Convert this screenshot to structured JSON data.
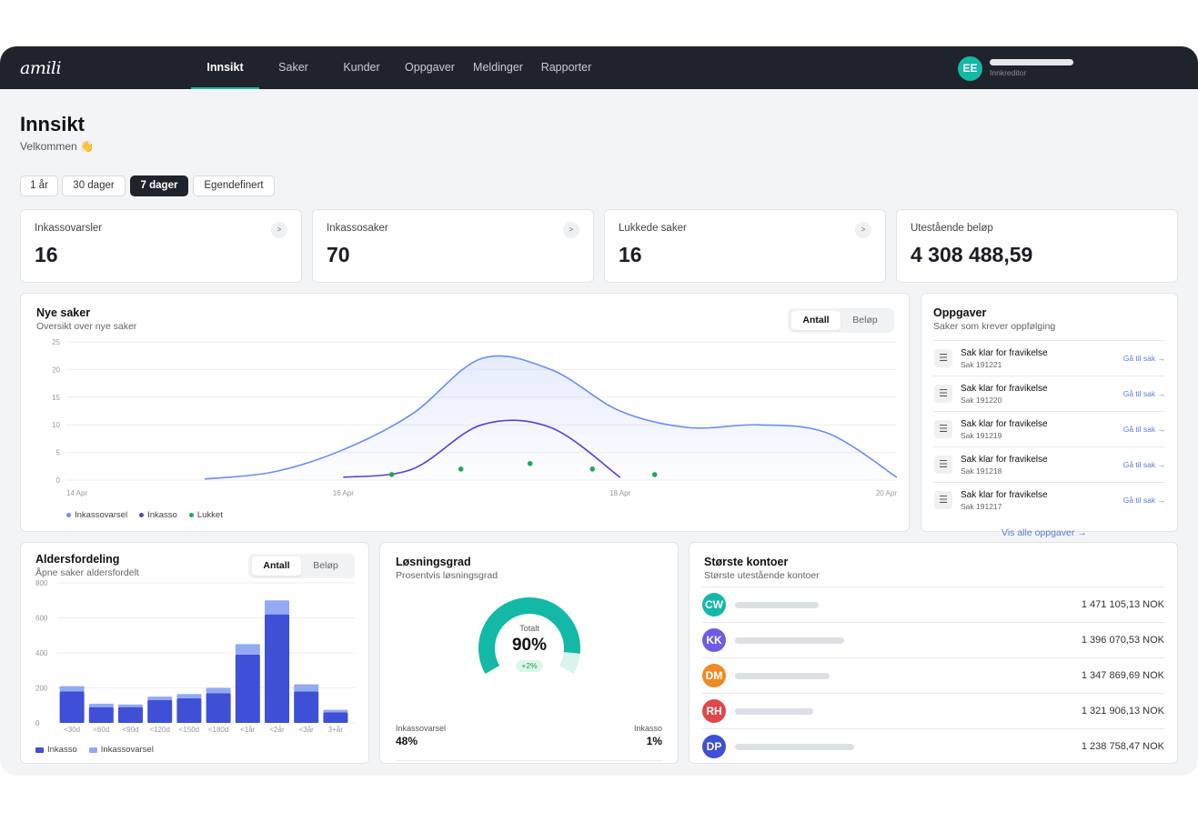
{
  "app": {
    "logo": "amili"
  },
  "nav": {
    "items": [
      "Innsikt",
      "Saker",
      "Kunder",
      "Oppgaver",
      "Meldinger",
      "Rapporter"
    ],
    "active": "Innsikt"
  },
  "user": {
    "initials": "EE",
    "role": "Innkreditor"
  },
  "page": {
    "title": "Innsikt",
    "subtitle": "Velkommen 👋"
  },
  "ranges": {
    "options": [
      "1 år",
      "30 dager",
      "7 dager",
      "Egendefinert"
    ],
    "active": "7 dager"
  },
  "kpis": [
    {
      "label": "Inkassovarsler",
      "value": "16",
      "arrow": ">"
    },
    {
      "label": "Inkassosaker",
      "value": "70",
      "arrow": ">"
    },
    {
      "label": "Lukkede saker",
      "value": "16",
      "arrow": ">"
    },
    {
      "label": "Utestående beløp",
      "value": "4 308 488,59"
    }
  ],
  "new_cases": {
    "title": "Nye saker",
    "subtitle": "Oversikt over nye saker",
    "toggle": [
      "Antall",
      "Beløp"
    ],
    "toggle_active": "Antall",
    "legend": [
      "Inkassovarsel",
      "Inkasso",
      "Lukket"
    ]
  },
  "tasks": {
    "title": "Oppgaver",
    "subtitle": "Saker som krever oppfølging",
    "items": [
      {
        "title": "Sak klar for fravikelse",
        "id": "Sak 191221",
        "link": "Gå til sak →"
      },
      {
        "title": "Sak klar for fravikelse",
        "id": "Sak 191220",
        "link": "Gå til sak →"
      },
      {
        "title": "Sak klar for fravikelse",
        "id": "Sak 191219",
        "link": "Gå til sak →"
      },
      {
        "title": "Sak klar for fravikelse",
        "id": "Sak 191218",
        "link": "Gå til sak →"
      },
      {
        "title": "Sak klar for fravikelse",
        "id": "Sak 191217",
        "link": "Gå til sak →"
      }
    ],
    "view_all": "Vis alle oppgaver →"
  },
  "age_dist": {
    "title": "Aldersfordeling",
    "subtitle": "Åpne saker aldersfordelt",
    "toggle": [
      "Antall",
      "Beløp"
    ],
    "toggle_active": "Antall",
    "legend": [
      "Inkasso",
      "Inkassovarsel"
    ]
  },
  "resolution": {
    "title": "Løsningsgrad",
    "subtitle": "Prosentvis løsningsgrad",
    "center_label": "Totalt",
    "center_value": "90%",
    "delta": "+2%",
    "left_label": "Inkassovarsel",
    "left_value": "48%",
    "right_label": "Inkasso",
    "right_value": "1%",
    "percent": 90
  },
  "accounts": {
    "title": "Største kontoer",
    "subtitle": "Største utestående kontoer",
    "items": [
      {
        "initials": "CW",
        "color": "#14b8a6",
        "amount": "1 471 105,13 NOK"
      },
      {
        "initials": "KK",
        "color": "#6d5be6",
        "amount": "1 396 070,53 NOK"
      },
      {
        "initials": "DM",
        "color": "#f08a24",
        "amount": "1 347 869,69 NOK"
      },
      {
        "initials": "RH",
        "color": "#e04848",
        "amount": "1 321 906,13 NOK"
      },
      {
        "initials": "DP",
        "color": "#3f4fd6",
        "amount": "1 238 758,47 NOK"
      }
    ]
  },
  "chart_data": [
    {
      "type": "line",
      "title": "Nye saker",
      "x_ticks": [
        "14 Apr",
        "16 Apr",
        "18 Apr",
        "20 Apr"
      ],
      "ylim": [
        0,
        25
      ],
      "y_ticks": [
        0,
        5,
        10,
        15,
        20,
        25
      ],
      "grid": true,
      "legend_placement": "bottom-left",
      "x": [
        14,
        14.5,
        15,
        15.5,
        16,
        16.5,
        17,
        17.5,
        18,
        18.5,
        19,
        19.5,
        20
      ],
      "series": [
        {
          "name": "Inkassovarsel",
          "color": "#6b8ef0",
          "values": [
            null,
            null,
            0.2,
            1.5,
            5.5,
            12,
            22,
            20,
            12.5,
            9.5,
            10,
            8.5,
            0.5
          ]
        },
        {
          "name": "Inkasso",
          "color": "#5b3fd6",
          "values": [
            null,
            null,
            null,
            null,
            0.5,
            2,
            10,
            9.5,
            0.5,
            null,
            null,
            null,
            null
          ]
        }
      ],
      "points": {
        "name": "Lukket",
        "color": "#1faa59",
        "x": [
          16.35,
          16.85,
          17.35,
          17.8,
          18.25
        ],
        "y": [
          1,
          2,
          3,
          2,
          1
        ]
      }
    },
    {
      "type": "bar",
      "title": "Aldersfordeling",
      "categories": [
        "<30d",
        "<60d",
        "<90d",
        "<120d",
        "<150d",
        "<180d",
        "<1år",
        "<2år",
        "<3år",
        "3+år"
      ],
      "ylim": [
        0,
        800
      ],
      "y_ticks": [
        0,
        200,
        400,
        600,
        800
      ],
      "stacked": true,
      "series": [
        {
          "name": "Inkasso",
          "color": "#3f4fd6",
          "values": [
            180,
            90,
            90,
            130,
            140,
            170,
            390,
            620,
            180,
            60
          ]
        },
        {
          "name": "Inkassovarsel",
          "color": "#93a9f4",
          "values": [
            30,
            20,
            15,
            20,
            25,
            30,
            60,
            80,
            40,
            15
          ]
        }
      ]
    }
  ]
}
